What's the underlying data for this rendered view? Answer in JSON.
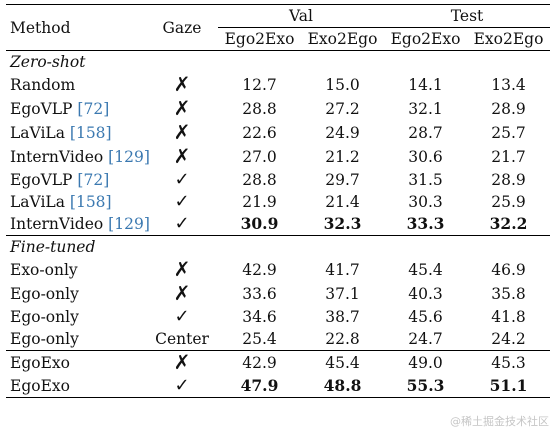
{
  "table": {
    "headers": {
      "method": "Method",
      "gaze": "Gaze",
      "val_group": "Val",
      "test_group": "Test",
      "sub": [
        "Ego2Exo",
        "Exo2Ego",
        "Ego2Exo",
        "Exo2Ego"
      ]
    },
    "sections": [
      {
        "title": "Zero-shot",
        "rows": [
          {
            "method": "Random",
            "cite": "",
            "gaze": "✗",
            "values": [
              "12.7",
              "15.0",
              "14.1",
              "13.4"
            ]
          },
          {
            "method": "EgoVLP",
            "cite": "72",
            "gaze": "✗",
            "values": [
              "28.8",
              "27.2",
              "32.1",
              "28.9"
            ]
          },
          {
            "method": "LaViLa",
            "cite": "158",
            "gaze": "✗",
            "values": [
              "22.6",
              "24.9",
              "28.7",
              "25.7"
            ]
          },
          {
            "method": "InternVideo",
            "cite": "129",
            "gaze": "✗",
            "values": [
              "27.0",
              "21.2",
              "30.6",
              "21.7"
            ]
          },
          {
            "method": "EgoVLP",
            "cite": "72",
            "gaze": "✓",
            "values": [
              "28.8",
              "29.7",
              "31.5",
              "28.9"
            ]
          },
          {
            "method": "LaViLa",
            "cite": "158",
            "gaze": "✓",
            "values": [
              "21.9",
              "21.4",
              "30.3",
              "25.9"
            ]
          },
          {
            "method": "InternVideo",
            "cite": "129",
            "gaze": "✓",
            "values": [
              "30.9",
              "32.3",
              "33.3",
              "32.2"
            ],
            "bold": true
          }
        ]
      },
      {
        "title": "Fine-tuned",
        "rows": [
          {
            "method": "Exo-only",
            "cite": "",
            "gaze": "✗",
            "values": [
              "42.9",
              "41.7",
              "45.4",
              "46.9"
            ]
          },
          {
            "method": "Ego-only",
            "cite": "",
            "gaze": "✗",
            "values": [
              "33.6",
              "37.1",
              "40.3",
              "35.8"
            ]
          },
          {
            "method": "Ego-only",
            "cite": "",
            "gaze": "✓",
            "values": [
              "34.6",
              "38.7",
              "45.6",
              "41.8"
            ]
          },
          {
            "method": "Ego-only",
            "cite": "",
            "gaze": "Center",
            "values": [
              "25.4",
              "22.8",
              "24.7",
              "24.2"
            ]
          }
        ]
      },
      {
        "title": "",
        "rows": [
          {
            "method": "EgoExo",
            "cite": "",
            "gaze": "✗",
            "values": [
              "42.9",
              "45.4",
              "49.0",
              "45.3"
            ]
          },
          {
            "method": "EgoExo",
            "cite": "",
            "gaze": "✓",
            "values": [
              "47.9",
              "48.8",
              "55.3",
              "51.1"
            ],
            "bold": true
          }
        ]
      }
    ]
  },
  "watermark": "@稀土掘金技术社区"
}
